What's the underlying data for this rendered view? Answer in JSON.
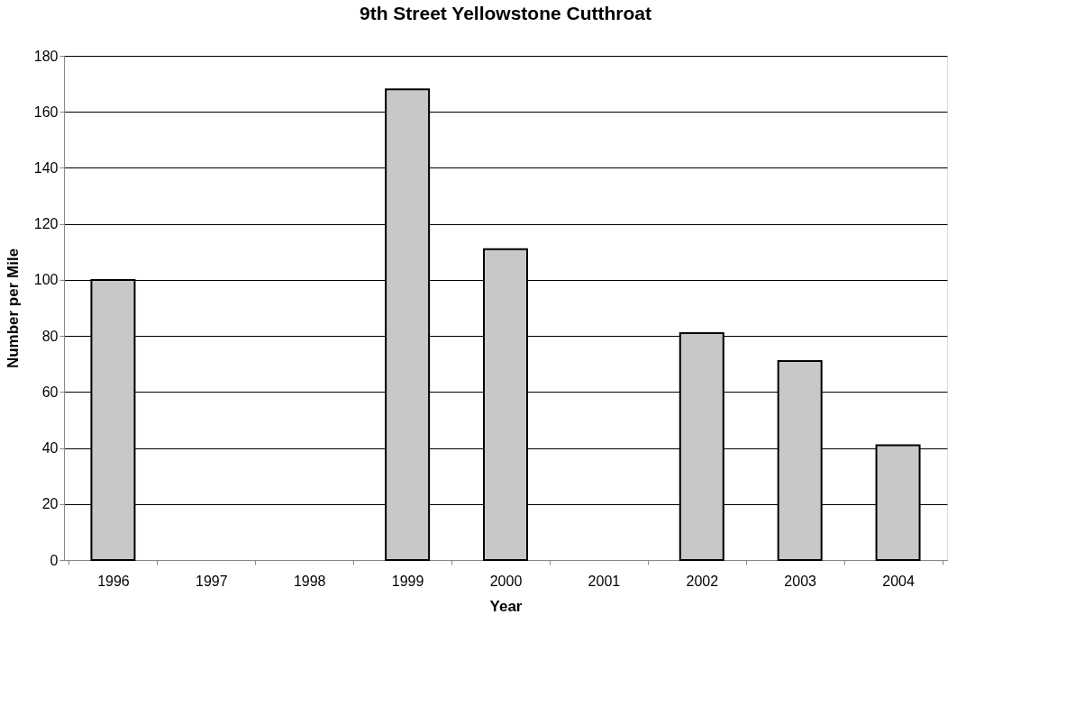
{
  "chart_data": {
    "type": "bar",
    "title": "9th Street Yellowstone Cutthroat",
    "xlabel": "Year",
    "ylabel": "Number per Mile",
    "categories": [
      "1996",
      "1997",
      "1998",
      "1999",
      "2000",
      "2001",
      "2002",
      "2003",
      "2004"
    ],
    "values": [
      100,
      null,
      null,
      168,
      111,
      null,
      81,
      71,
      41
    ],
    "color": "#c8c8c8",
    "ylim": [
      0,
      180
    ],
    "yticks": [
      0,
      20,
      40,
      60,
      80,
      100,
      120,
      140,
      160,
      180
    ],
    "grid": "y"
  }
}
